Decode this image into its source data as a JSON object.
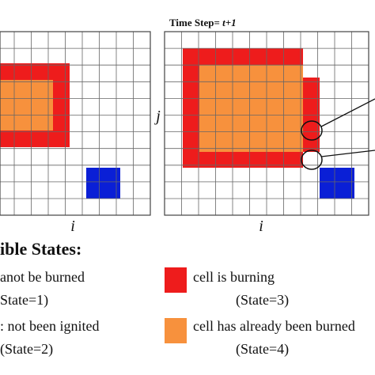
{
  "header": {
    "title_prefix": "Time Step= ",
    "title_time": "t+1"
  },
  "axes": {
    "left_i": "i",
    "right_j": "j",
    "right_i": "i"
  },
  "legend": {
    "title": "ible States:",
    "items": [
      {
        "label": "anot be burned",
        "state": "State=1)"
      },
      {
        "label": ": not been ignited",
        "state": "(State=2)"
      },
      {
        "label": "cell is burning",
        "state": "(State=3)"
      },
      {
        "label": "cell has already been burned",
        "state": "(State=4)"
      }
    ]
  }
}
